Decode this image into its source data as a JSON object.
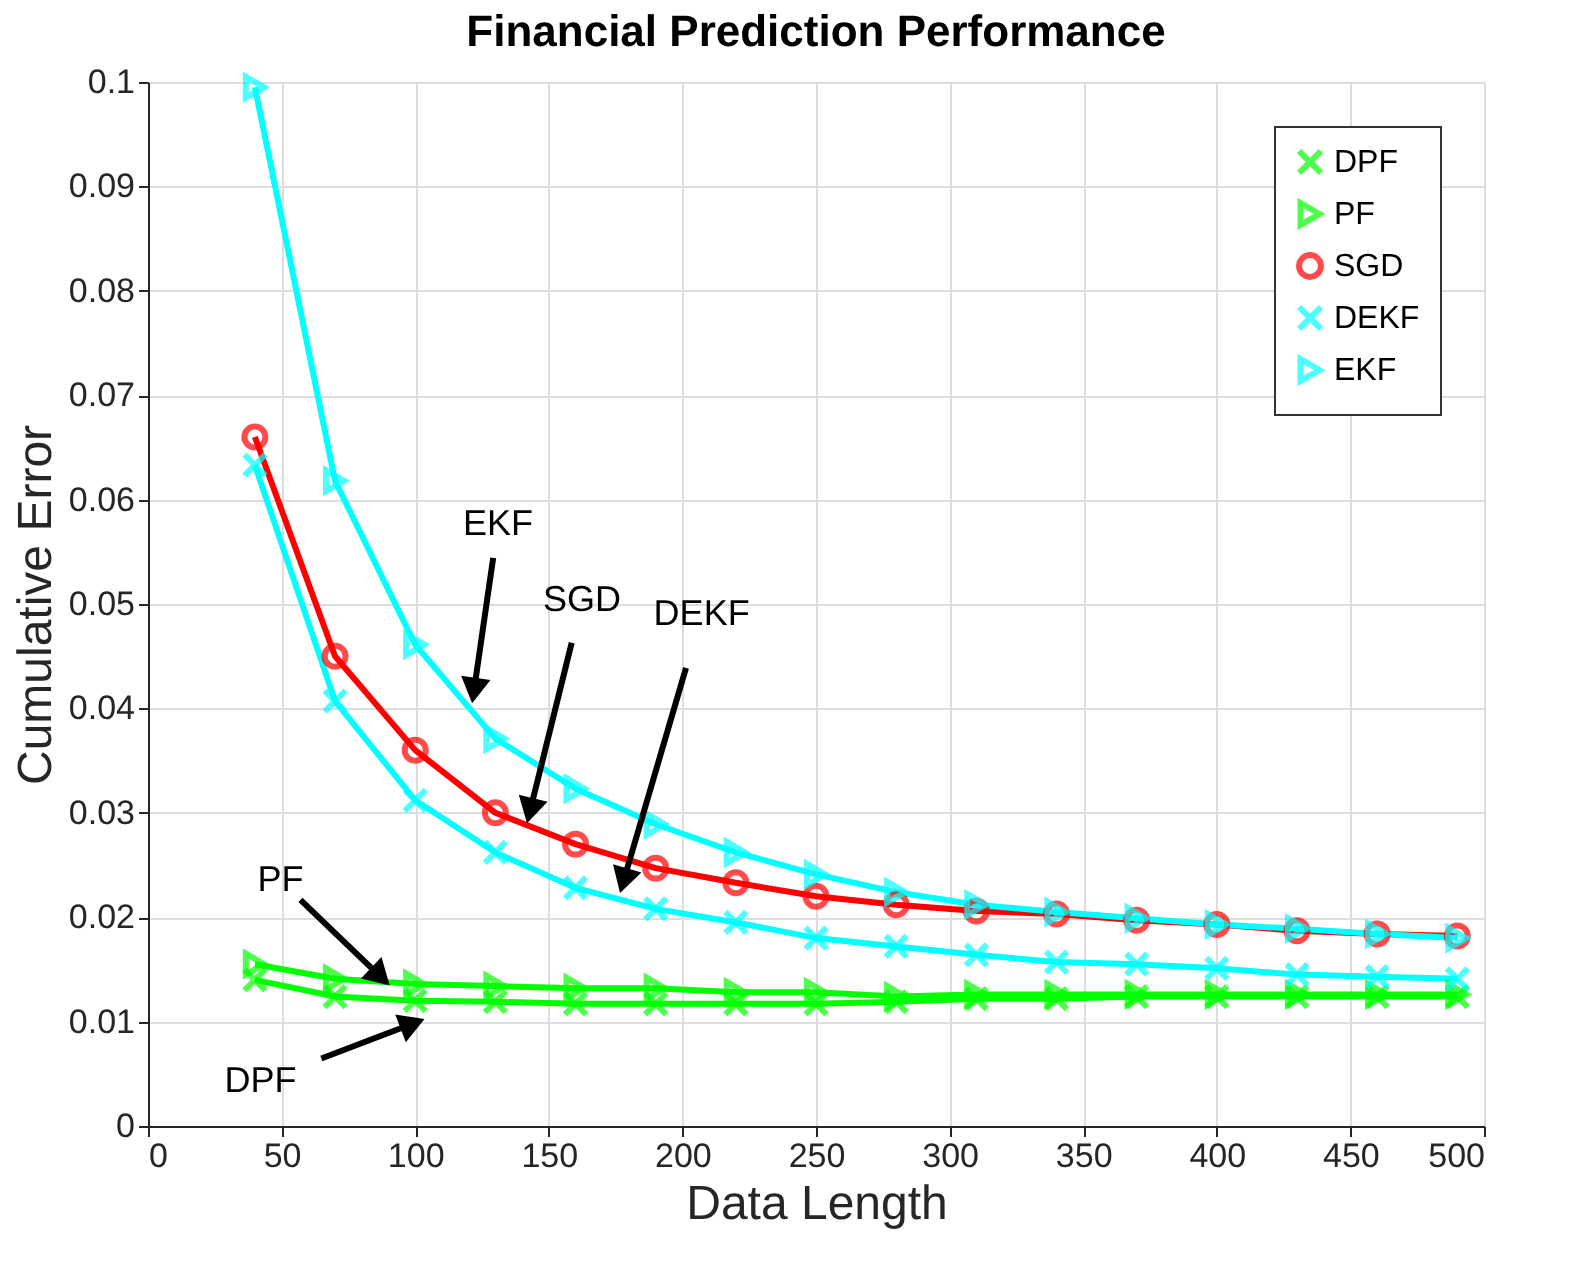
{
  "chart_data": {
    "type": "line",
    "title": "Financial Prediction Performance",
    "xlabel": "Data Length",
    "ylabel": "Cumulative Error",
    "x": [
      40,
      70,
      100,
      130,
      160,
      190,
      220,
      250,
      280,
      310,
      340,
      370,
      400,
      430,
      460,
      490
    ],
    "series": [
      {
        "name": "DPF",
        "color": "#00ff00",
        "marker": "cross",
        "values": [
          0.014,
          0.0124,
          0.012,
          0.0119,
          0.0117,
          0.0117,
          0.0117,
          0.0117,
          0.0119,
          0.0122,
          0.0122,
          0.0124,
          0.0124,
          0.0124,
          0.0124,
          0.0124
        ]
      },
      {
        "name": "PF",
        "color": "#00ff00",
        "marker": "triangle",
        "values": [
          0.0155,
          0.0141,
          0.0136,
          0.0134,
          0.0132,
          0.0132,
          0.0128,
          0.0128,
          0.0124,
          0.0126,
          0.0126,
          0.0126,
          0.0126,
          0.0126,
          0.0126,
          0.0126
        ]
      },
      {
        "name": "SGD",
        "color": "#ff0000",
        "marker": "circle",
        "values": [
          0.066,
          0.045,
          0.036,
          0.03,
          0.027,
          0.0247,
          0.0233,
          0.022,
          0.0212,
          0.0206,
          0.0203,
          0.0197,
          0.0193,
          0.0187,
          0.0184,
          0.0182
        ]
      },
      {
        "name": "DEKF",
        "color": "#00ffff",
        "marker": "cross",
        "values": [
          0.0633,
          0.0407,
          0.0312,
          0.0262,
          0.0228,
          0.0208,
          0.0195,
          0.018,
          0.0172,
          0.0164,
          0.0157,
          0.0155,
          0.0151,
          0.0145,
          0.0143,
          0.0141
        ]
      },
      {
        "name": "EKF",
        "color": "#00ffff",
        "marker": "triangle",
        "values": [
          0.0995,
          0.0618,
          0.0461,
          0.0371,
          0.0323,
          0.0289,
          0.0262,
          0.0241,
          0.0224,
          0.0212,
          0.0205,
          0.0199,
          0.0193,
          0.0189,
          0.0184,
          0.018
        ]
      }
    ],
    "xlim": [
      0,
      500
    ],
    "xticks": [
      0,
      50,
      100,
      150,
      200,
      250,
      300,
      350,
      400,
      450,
      500
    ],
    "ylim": [
      0,
      0.1
    ],
    "yticks": [
      0,
      0.01,
      0.02,
      0.03,
      0.04,
      0.05,
      0.06,
      0.07,
      0.08,
      0.09,
      0.1
    ],
    "grid": true,
    "legend": "top right",
    "line_style": "solid",
    "annotations": [
      {
        "text": "EKF",
        "x": 122,
        "y": 0.0417
      },
      {
        "text": "SGD",
        "x": 143,
        "y": 0.0302
      },
      {
        "text": "DEKF",
        "x": 178,
        "y": 0.0235
      },
      {
        "text": "PF",
        "x": 87,
        "y": 0.0143
      },
      {
        "text": "DPF",
        "x": 99,
        "y": 0.0098
      }
    ]
  }
}
